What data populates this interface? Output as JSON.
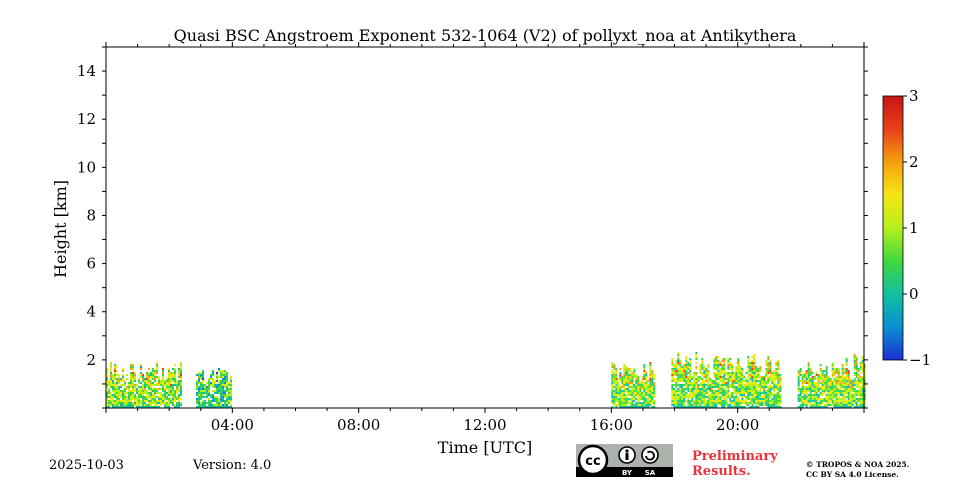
{
  "chart_data": {
    "type": "heatmap",
    "title": "Quasi BSC Angstroem Exponent 532-1064 (V2) of pollyxt_noa at Antikythera",
    "xlabel": "Time [UTC]",
    "ylabel": "Height [km]",
    "x_unit": "hours UTC",
    "xlim": [
      0,
      24
    ],
    "ylim": [
      0,
      15
    ],
    "x_ticks": [
      {
        "value": 4,
        "label": "04:00"
      },
      {
        "value": 8,
        "label": "08:00"
      },
      {
        "value": 12,
        "label": "12:00"
      },
      {
        "value": 16,
        "label": "16:00"
      },
      {
        "value": 20,
        "label": "20:00"
      }
    ],
    "y_ticks": [
      {
        "value": 2,
        "label": "2"
      },
      {
        "value": 4,
        "label": "4"
      },
      {
        "value": 6,
        "label": "6"
      },
      {
        "value": 8,
        "label": "8"
      },
      {
        "value": 10,
        "label": "10"
      },
      {
        "value": 12,
        "label": "12"
      },
      {
        "value": 14,
        "label": "14"
      }
    ],
    "colorbar": {
      "range": [
        -1,
        3
      ],
      "ticks": [
        {
          "value": 3,
          "label": "3"
        },
        {
          "value": 2,
          "label": "2"
        },
        {
          "value": 1,
          "label": "1"
        },
        {
          "value": 0,
          "label": "0"
        },
        {
          "value": -1,
          "label": "−1"
        }
      ],
      "colormap": [
        "#1f2fd6",
        "#0a8fd0",
        "#12c0a0",
        "#40d840",
        "#b5f01a",
        "#f5e614",
        "#f5a010",
        "#e8401a",
        "#c81414"
      ]
    },
    "data_segments": [
      {
        "start": 0.0,
        "end": 2.35,
        "top_km": 2.0,
        "dominant_value": 0.8
      },
      {
        "start": 2.85,
        "end": 3.95,
        "top_km": 1.8,
        "dominant_value": 0.3
      },
      {
        "start": 16.0,
        "end": 17.35,
        "top_km": 2.0,
        "dominant_value": 0.8
      },
      {
        "start": 17.9,
        "end": 21.35,
        "top_km": 2.4,
        "dominant_value": 0.8
      },
      {
        "start": 21.9,
        "end": 24.0,
        "top_km": 2.3,
        "dominant_value": 0.8
      }
    ]
  },
  "footer": {
    "date": "2025-10-03",
    "version": "Version: 4.0",
    "preliminary": [
      "Preliminary",
      "Results."
    ],
    "copyright": [
      "© TROPOS & NOA 2025.",
      "CC BY SA 4.0 License."
    ],
    "license_badge": {
      "cc": "cc",
      "by": "BY",
      "sa": "SA"
    }
  }
}
